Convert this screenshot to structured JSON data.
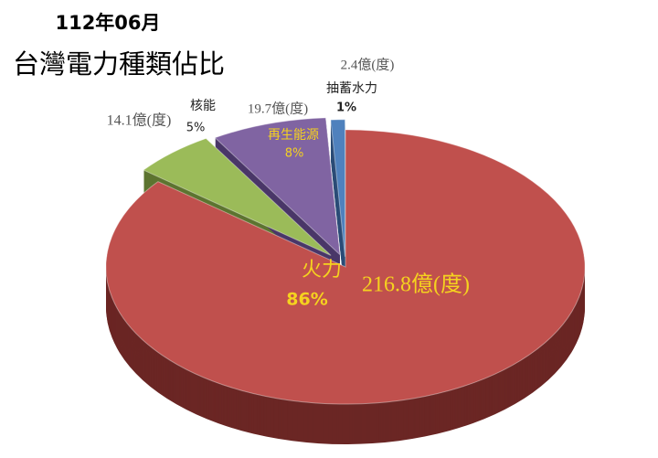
{
  "chart_data": {
    "type": "pie",
    "title": "112年06月",
    "subtitle": "台灣電力種類佔比",
    "categories": [
      "火力",
      "核能",
      "再生能源",
      "抽蓄水力"
    ],
    "values": [
      216.8,
      14.1,
      19.7,
      2.4
    ],
    "value_labels": [
      "216.8億(度)",
      "14.1億(度)",
      "19.7億(度)",
      "2.4億(度)"
    ],
    "percents": [
      86,
      5,
      8,
      1
    ],
    "percent_labels": [
      "86%",
      "5%",
      "8%",
      "1%"
    ],
    "colors": [
      "#c0504d",
      "#9bbb59",
      "#8064a2",
      "#4f81bd"
    ],
    "side_colors": [
      "#6b2624",
      "#5d7430",
      "#4a3768",
      "#2c4d78"
    ]
  }
}
